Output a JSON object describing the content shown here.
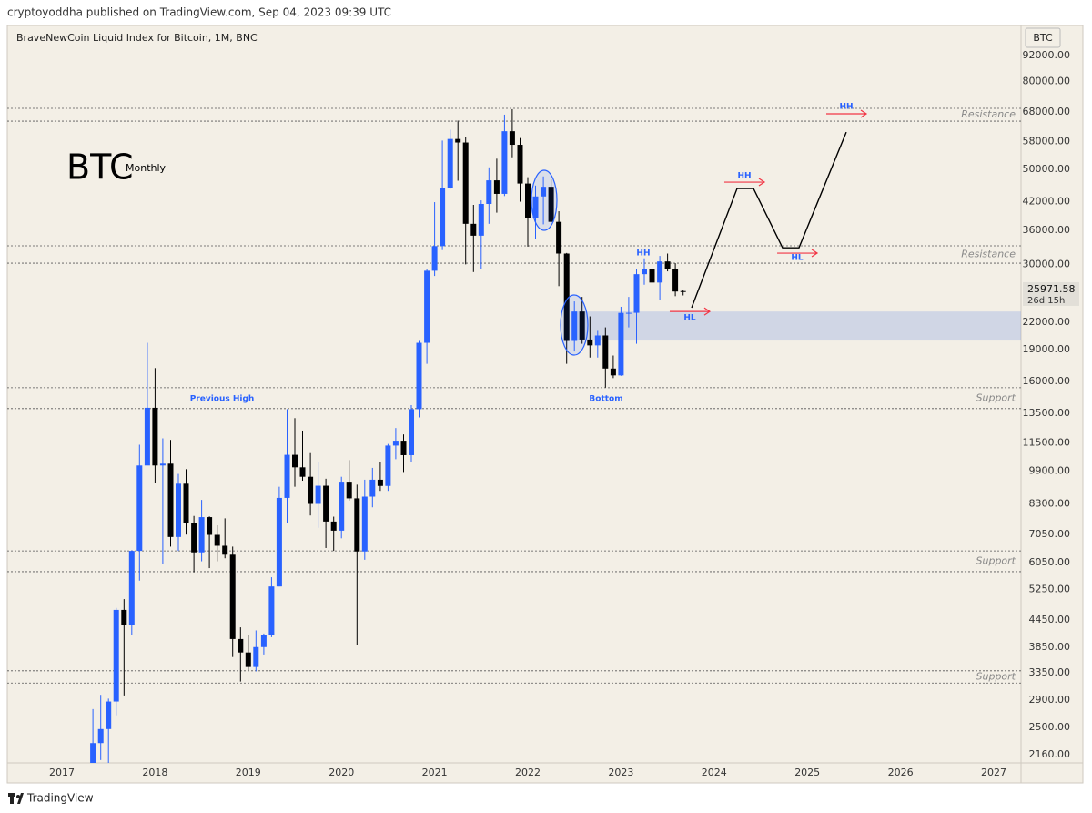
{
  "chart_data": {
    "type": "candlestick",
    "publisher_line": "cryptoyoddha published on TradingView.com, Sep 04, 2023 09:39 UTC",
    "title": "BraveNewCoin Liquid Index for Bitcoin, 1M, BNC",
    "symbol": "BTC",
    "symbol_big": "BTC",
    "interval_label": "Monthly",
    "countdown": "26d 15h",
    "brand": "TradingView",
    "up_color": "#2962ff",
    "down_color": "#000000",
    "log": true,
    "grid": false,
    "xlim": [
      2016.414,
      2027.293
    ],
    "xticks": [
      2017,
      2018,
      2019,
      2020,
      2021,
      2022,
      2023,
      2024,
      2025,
      2026,
      2027
    ],
    "ylim": [
      2068,
      108100
    ],
    "yticks": [
      {
        "value": 92000,
        "label": "92000.00"
      },
      {
        "value": 80000,
        "label": "80000.00"
      },
      {
        "value": 68000,
        "label": "68000.00"
      },
      {
        "value": 58000,
        "label": "58000.00"
      },
      {
        "value": 50000,
        "label": "50000.00"
      },
      {
        "value": 42000,
        "label": "42000.00"
      },
      {
        "value": 36000,
        "label": "36000.00"
      },
      {
        "value": 30000,
        "label": "30000.00"
      },
      {
        "value": 22000,
        "label": "22000.00"
      },
      {
        "value": 19000,
        "label": "19000.00"
      },
      {
        "value": 16000,
        "label": "16000.00"
      },
      {
        "value": 13500,
        "label": "13500.00"
      },
      {
        "value": 11500,
        "label": "11500.00"
      },
      {
        "value": 9900,
        "label": "9900.00"
      },
      {
        "value": 8300,
        "label": "8300.00"
      },
      {
        "value": 7050,
        "label": "7050.00"
      },
      {
        "value": 6050,
        "label": "6050.00"
      },
      {
        "value": 5250,
        "label": "5250.00"
      },
      {
        "value": 4450,
        "label": "4450.00"
      },
      {
        "value": 3850,
        "label": "3850.00"
      },
      {
        "value": 3350,
        "label": "3350.00"
      },
      {
        "value": 2900,
        "label": "2900.00"
      },
      {
        "value": 2500,
        "label": "2500.00"
      },
      {
        "value": 2160,
        "label": "2160.00"
      }
    ],
    "x": [
      2017.333,
      2017.417,
      2017.5,
      2017.583,
      2017.667,
      2017.75,
      2017.833,
      2017.917,
      2018,
      2018.083,
      2018.167,
      2018.25,
      2018.333,
      2018.417,
      2018.5,
      2018.583,
      2018.667,
      2018.75,
      2018.833,
      2018.917,
      2019,
      2019.083,
      2019.167,
      2019.25,
      2019.333,
      2019.417,
      2019.5,
      2019.583,
      2019.667,
      2019.75,
      2019.833,
      2019.917,
      2020,
      2020.083,
      2020.167,
      2020.25,
      2020.333,
      2020.417,
      2020.5,
      2020.583,
      2020.667,
      2020.75,
      2020.833,
      2020.917,
      2021,
      2021.083,
      2021.167,
      2021.25,
      2021.333,
      2021.417,
      2021.5,
      2021.583,
      2021.667,
      2021.75,
      2021.833,
      2021.917,
      2022,
      2022.083,
      2022.167,
      2022.25,
      2022.333,
      2022.417,
      2022.5,
      2022.583,
      2022.667,
      2022.75,
      2022.833,
      2022.917,
      2023,
      2023.083,
      2023.167,
      2023.25,
      2023.333,
      2023.417,
      2023.5,
      2023.583,
      2023.667
    ],
    "open": [
      1350,
      2300,
      2480,
      2875,
      4700,
      4340,
      6450,
      10200,
      13900,
      10200,
      10300,
      6950,
      9250,
      7500,
      6400,
      7730,
      7030,
      6630,
      6320,
      4020,
      3740,
      3460,
      3850,
      4100,
      5330,
      8570,
      10800,
      10100,
      9600,
      8300,
      9150,
      7550,
      7190,
      9350,
      8550,
      6430,
      8630,
      9450,
      9140,
      11350,
      11650,
      10780,
      13800,
      19700,
      29000,
      33100,
      45200,
      58800,
      57700,
      37300,
      35000,
      41500,
      47100,
      43800,
      61300,
      57000,
      46300,
      38500,
      43200,
      45500,
      37700,
      31800,
      19900,
      23300,
      20050,
      19430,
      20490,
      17160,
      16540,
      23130,
      23140,
      28470,
      29250,
      27220,
      30480,
      29230,
      26000
    ],
    "high": [
      2760,
      2980,
      2920,
      4750,
      4980,
      6470,
      11400,
      19700,
      17200,
      11800,
      11700,
      9750,
      10000,
      7780,
      8480,
      7760,
      7400,
      7680,
      6600,
      4280,
      4100,
      4210,
      4140,
      5600,
      9100,
      13800,
      13150,
      12300,
      10900,
      10400,
      9500,
      7750,
      9600,
      10500,
      9200,
      9450,
      10070,
      10400,
      11450,
      12470,
      12050,
      14100,
      19900,
      29300,
      41900,
      58300,
      61800,
      64900,
      59500,
      41300,
      42300,
      50500,
      52900,
      67000,
      69000,
      59100,
      47900,
      45800,
      48100,
      47400,
      39900,
      31900,
      24600,
      25200,
      22700,
      21000,
      21400,
      18400,
      23900,
      25200,
      29200,
      31000,
      29800,
      31400,
      31800,
      30200,
      26100
    ],
    "low": [
      1350,
      2100,
      1840,
      2670,
      2970,
      4110,
      5500,
      10700,
      9300,
      6000,
      6600,
      6450,
      7040,
      5750,
      6100,
      5880,
      6100,
      6200,
      3650,
      3200,
      3400,
      3380,
      3700,
      4060,
      5330,
      7500,
      9100,
      9400,
      7800,
      7300,
      6550,
      6450,
      6900,
      8450,
      3900,
      6150,
      8150,
      8900,
      8900,
      10550,
      9850,
      10400,
      13200,
      17600,
      28200,
      32400,
      45000,
      47000,
      30000,
      28800,
      29300,
      37300,
      39600,
      43300,
      53300,
      42000,
      33000,
      34300,
      37200,
      37600,
      26700,
      17600,
      18800,
      19600,
      18200,
      18200,
      15500,
      16300,
      16500,
      21400,
      19600,
      26900,
      25800,
      24800,
      28900,
      25300,
      25400
    ],
    "close": [
      2300,
      2480,
      2875,
      4700,
      4340,
      6450,
      10200,
      13900,
      10200,
      10300,
      6950,
      9250,
      7500,
      6400,
      7730,
      7030,
      6630,
      6320,
      4020,
      3740,
      3460,
      3850,
      4100,
      5330,
      8570,
      10800,
      10100,
      9600,
      8300,
      9150,
      7550,
      7190,
      9350,
      8550,
      6430,
      8630,
      9450,
      9140,
      11350,
      11650,
      10780,
      13800,
      19700,
      29000,
      33100,
      45200,
      58800,
      57700,
      37300,
      35000,
      41500,
      47100,
      43800,
      61300,
      57000,
      46300,
      38500,
      43200,
      45500,
      37700,
      31800,
      19900,
      23300,
      20050,
      19430,
      20490,
      17160,
      16540,
      23130,
      23140,
      28470,
      29250,
      27220,
      30480,
      29230,
      25940,
      25971.58
    ],
    "levels": [
      {
        "label": "Resistance",
        "values": [
          69300,
          64700
        ]
      },
      {
        "label": "Resistance",
        "values": [
          33150,
          30200
        ]
      },
      {
        "label": "Support",
        "values": [
          15480,
          13840
        ]
      },
      {
        "label": "Support",
        "values": [
          6450,
          5770
        ]
      },
      {
        "label": "Support",
        "values": [
          3390,
          3175
        ]
      }
    ],
    "zone": {
      "from": 2022.5,
      "range": [
        19940,
        23300
      ]
    },
    "projection": {
      "x": [
        2023.758,
        2024.246,
        2024.422,
        2024.734,
        2024.91,
        2025.418
      ],
      "y": [
        23780,
        45080,
        45080,
        32800,
        32800,
        61000
      ]
    },
    "annotations": [
      {
        "text": "Previous High",
        "x": 2018.719,
        "y": 14580
      },
      {
        "text": "Bottom",
        "x": 2022.84,
        "y": 14580
      },
      {
        "text": "HH",
        "x": 2023.24,
        "y": 31870
      },
      {
        "text": "HH",
        "x": 2024.324,
        "y": 48270,
        "arrow_y": 46650
      },
      {
        "text": "HL",
        "x": 2024.891,
        "y": 31100,
        "arrow_y": 31870
      },
      {
        "text": "HH",
        "x": 2025.418,
        "y": 69970,
        "arrow_y": 67300
      },
      {
        "text": "HL",
        "x": 2023.738,
        "y": 22530,
        "arrow_y": 23310
      }
    ]
  }
}
